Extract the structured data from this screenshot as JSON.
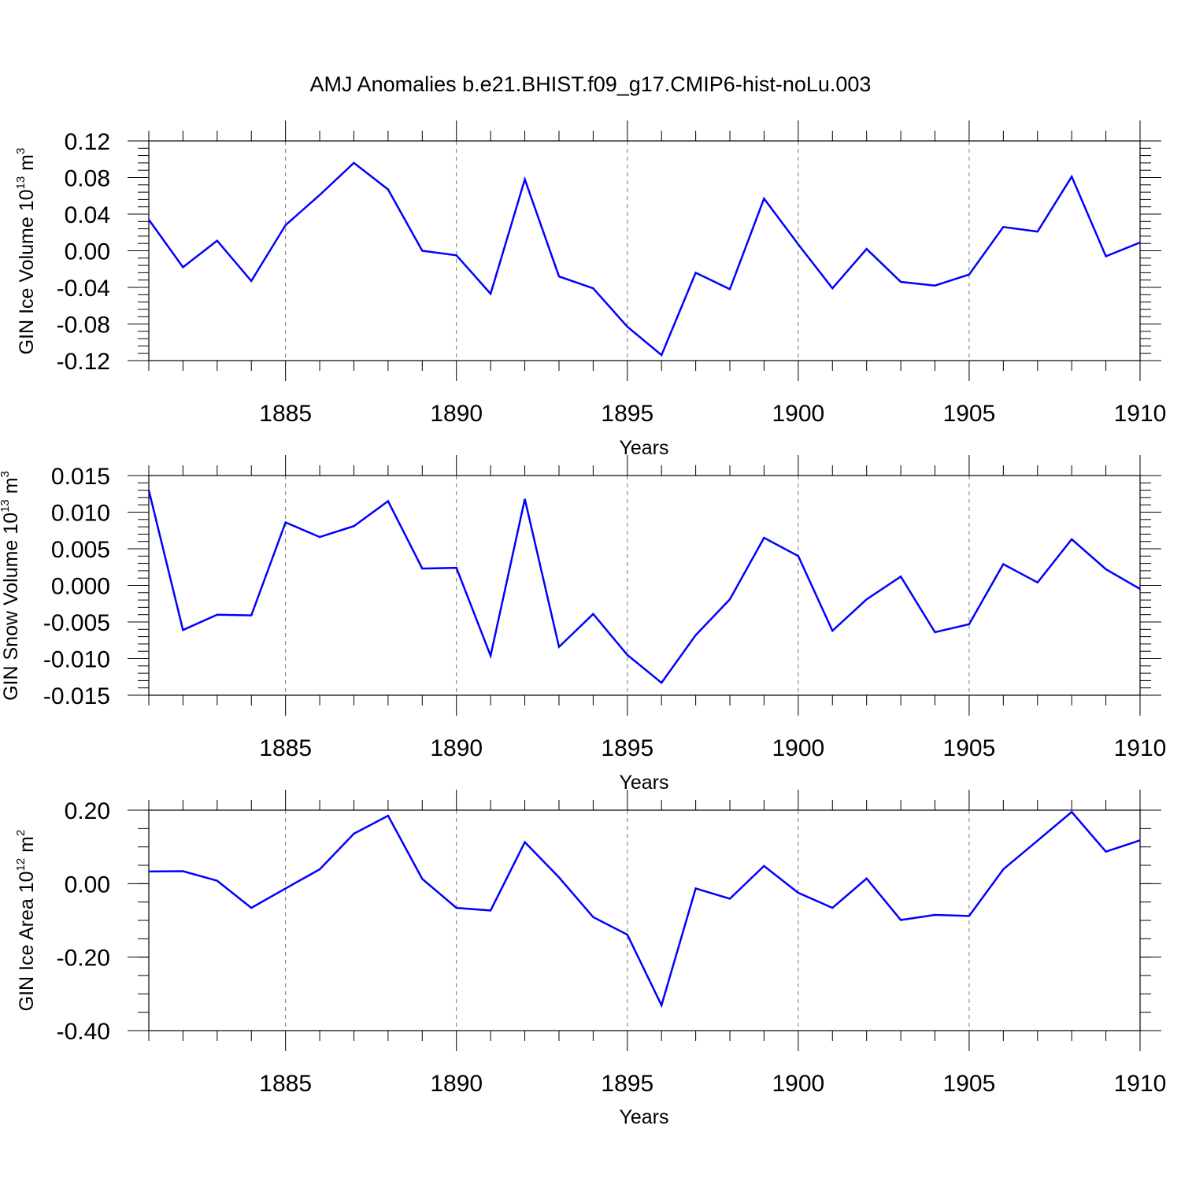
{
  "title": "AMJ Anomalies b.e21.BHIST.f09_g17.CMIP6-hist-noLu.003",
  "chart_data": [
    {
      "type": "line",
      "ylabel_main": "GIN Ice Volume 10",
      "ylabel_exp": "13",
      "ylabel_unit": " m",
      "ylabel_unit_exp": "3",
      "xlabel": "Years",
      "xlim": [
        1881,
        1910
      ],
      "ylim": [
        -0.12,
        0.12
      ],
      "yticks": [
        -0.12,
        -0.08,
        -0.04,
        0.0,
        0.04,
        0.08,
        0.12
      ],
      "ytick_labels": [
        "-0.12",
        "-0.08",
        "-0.04",
        "0.00",
        "0.04",
        "0.08",
        "0.12"
      ],
      "yminor_step": 0.008,
      "xticks": [
        1885,
        1890,
        1895,
        1900,
        1905,
        1910
      ],
      "xtick_labels": [
        "1885",
        "1890",
        "1895",
        "1900",
        "1905",
        "1910"
      ],
      "line_color": "#0000ff",
      "x": [
        1881,
        1882,
        1883,
        1884,
        1885,
        1886,
        1887,
        1888,
        1889,
        1890,
        1891,
        1892,
        1893,
        1894,
        1895,
        1896,
        1897,
        1898,
        1899,
        1900,
        1901,
        1902,
        1903,
        1904,
        1905,
        1906,
        1907,
        1908,
        1909,
        1910
      ],
      "y": [
        0.034,
        -0.018,
        0.011,
        -0.033,
        0.028,
        0.061,
        0.096,
        0.067,
        0.0,
        -0.005,
        -0.047,
        0.078,
        -0.028,
        -0.041,
        -0.083,
        -0.114,
        -0.024,
        -0.042,
        0.057,
        0.007,
        -0.041,
        0.002,
        -0.034,
        -0.038,
        -0.026,
        0.026,
        0.021,
        0.081,
        -0.006,
        0.009
      ]
    },
    {
      "type": "line",
      "ylabel_main": "GIN Snow Volume 10",
      "ylabel_exp": "13",
      "ylabel_unit": " m",
      "ylabel_unit_exp": "3",
      "xlabel": "Years",
      "xlim": [
        1881,
        1910
      ],
      "ylim": [
        -0.015,
        0.015
      ],
      "yticks": [
        -0.015,
        -0.01,
        -0.005,
        0.0,
        0.005,
        0.01,
        0.015
      ],
      "ytick_labels": [
        "-0.015",
        "-0.010",
        "-0.005",
        "0.000",
        "0.005",
        "0.010",
        "0.015"
      ],
      "yminor_step": 0.001,
      "xticks": [
        1885,
        1890,
        1895,
        1900,
        1905,
        1910
      ],
      "xtick_labels": [
        "1885",
        "1890",
        "1895",
        "1900",
        "1905",
        "1910"
      ],
      "line_color": "#0000ff",
      "x": [
        1881,
        1882,
        1883,
        1884,
        1885,
        1886,
        1887,
        1888,
        1889,
        1890,
        1891,
        1892,
        1893,
        1894,
        1895,
        1896,
        1897,
        1898,
        1899,
        1900,
        1901,
        1902,
        1903,
        1904,
        1905,
        1906,
        1907,
        1908,
        1909,
        1910
      ],
      "y": [
        0.013,
        -0.0061,
        -0.004,
        -0.0041,
        0.0086,
        0.0066,
        0.0081,
        0.0115,
        0.0023,
        0.0024,
        -0.0096,
        0.0118,
        -0.0084,
        -0.0039,
        -0.0095,
        -0.0133,
        -0.0068,
        -0.0019,
        0.0065,
        0.004,
        -0.0062,
        -0.0019,
        0.0012,
        -0.0064,
        -0.0053,
        0.0029,
        0.0004,
        0.0063,
        0.0022,
        -0.0005
      ]
    },
    {
      "type": "line",
      "ylabel_main": "GIN Ice Area 10",
      "ylabel_exp": "12",
      "ylabel_unit": " m",
      "ylabel_unit_exp": "2",
      "xlabel": "Years",
      "xlim": [
        1881,
        1910
      ],
      "ylim": [
        -0.4,
        0.2
      ],
      "yticks": [
        -0.4,
        -0.2,
        0.0,
        0.2
      ],
      "ytick_labels": [
        "-0.40",
        "-0.20",
        "0.00",
        "0.20"
      ],
      "yminor_step": 0.05,
      "xticks": [
        1885,
        1890,
        1895,
        1900,
        1905,
        1910
      ],
      "xtick_labels": [
        "1885",
        "1890",
        "1895",
        "1900",
        "1905",
        "1910"
      ],
      "line_color": "#0000ff",
      "x": [
        1881,
        1882,
        1883,
        1884,
        1885,
        1886,
        1887,
        1888,
        1889,
        1890,
        1891,
        1892,
        1893,
        1894,
        1895,
        1896,
        1897,
        1898,
        1899,
        1900,
        1901,
        1902,
        1903,
        1904,
        1905,
        1906,
        1907,
        1908,
        1909,
        1910
      ],
      "y": [
        0.033,
        0.034,
        0.008,
        -0.066,
        -0.013,
        0.039,
        0.136,
        0.185,
        0.013,
        -0.066,
        -0.073,
        0.113,
        0.017,
        -0.091,
        -0.139,
        -0.331,
        -0.013,
        -0.041,
        0.048,
        -0.025,
        -0.066,
        0.014,
        -0.099,
        -0.085,
        -0.088,
        0.039,
        0.117,
        0.195,
        0.087,
        0.118
      ]
    }
  ]
}
